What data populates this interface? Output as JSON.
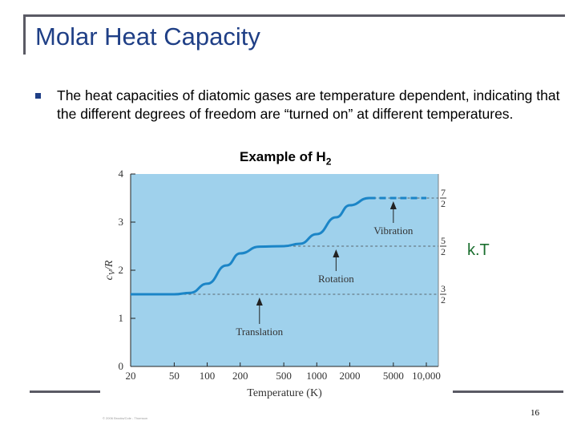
{
  "slide": {
    "title": "Molar Heat Capacity",
    "bullet": "The heat capacities of diatomic gases are temperature dependent, indicating that the different degrees of freedom are “turned on” at different temperatures.",
    "example_prefix": "Example of H",
    "example_sub": "2",
    "kt_label": "k.T",
    "copyright": "© 2006 Brooks/Cole - Thomson",
    "page_number": "16",
    "colors": {
      "title": "#1f3f86",
      "plot_bg": "#9fd1ec",
      "curve": "#1b85c7",
      "kt": "#1a6e2e"
    }
  },
  "chart_data": {
    "type": "line",
    "xscale": "log",
    "xlabel": "Temperature (K)",
    "ylabel": "cV/R",
    "ylabel_main": "c",
    "ylabel_sub": "V",
    "ylabel_rest": "/R",
    "ylim": [
      0,
      4
    ],
    "yticks": [
      "0",
      "1",
      "2",
      "3",
      "4"
    ],
    "xticks": [
      {
        "value": 20,
        "label": "20"
      },
      {
        "value": 50,
        "label": "50"
      },
      {
        "value": 100,
        "label": "100"
      },
      {
        "value": 200,
        "label": "200"
      },
      {
        "value": 500,
        "label": "500"
      },
      {
        "value": 1000,
        "label": "1000"
      },
      {
        "value": 2000,
        "label": "2000"
      },
      {
        "value": 5000,
        "label": "5000"
      },
      {
        "value": 10000,
        "label": "10,000"
      }
    ],
    "series": [
      {
        "x": [
          20,
          50,
          70,
          100,
          150,
          200,
          300,
          500,
          700,
          1000,
          1500,
          2000,
          3000
        ],
        "y": [
          1.5,
          1.5,
          1.53,
          1.72,
          2.1,
          2.35,
          2.49,
          2.5,
          2.55,
          2.75,
          3.1,
          3.35,
          3.5
        ]
      },
      {
        "x": [
          3000,
          10000
        ],
        "y": [
          3.5,
          3.5
        ],
        "dashed": true
      }
    ],
    "reference_lines": [
      {
        "y": 1.5,
        "x_from": 50
      },
      {
        "y": 2.5,
        "x_from": 500
      },
      {
        "y": 3.5,
        "x_from": 3000
      }
    ],
    "right_fractions": [
      {
        "y": 3.5,
        "num": "7",
        "den": "2"
      },
      {
        "y": 2.5,
        "num": "5",
        "den": "2"
      },
      {
        "y": 1.5,
        "num": "3",
        "den": "2"
      }
    ],
    "annotations": [
      {
        "text": "Translation",
        "arrow_x": 300,
        "arrow_y": 1.5,
        "text_y": 0.65
      },
      {
        "text": "Rotation",
        "arrow_x": 1500,
        "arrow_y": 2.5,
        "text_y": 1.75
      },
      {
        "text": "Vibration",
        "arrow_x": 5000,
        "arrow_y": 3.5,
        "text_y": 2.75
      }
    ]
  }
}
